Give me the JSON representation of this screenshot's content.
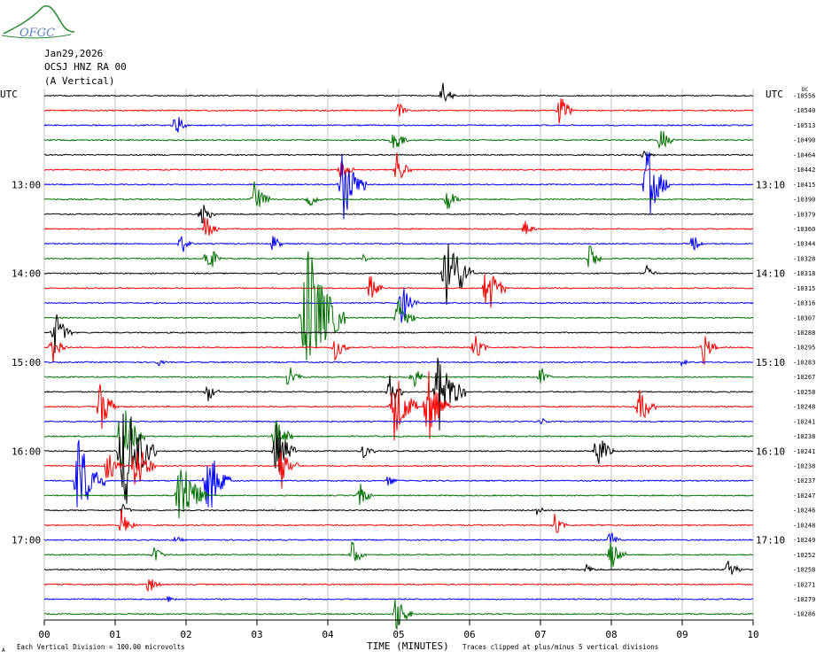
{
  "header": {
    "logo_text": "OFGC",
    "date": "Jan29,2026",
    "station": "OCSJ HNZ RA 00",
    "component": "(A Vertical)",
    "utc_left": "UTC",
    "utc_right": "UTC",
    "dc_label": "DC"
  },
  "footer": {
    "xlabel": "TIME (MINUTES)",
    "scale_note": "Each Vertical Division =  100.00 microvolts",
    "clip_note": "Traces clipped at plus/minus 5 vertical divisions",
    "corner_mark": "A"
  },
  "chart_data": {
    "type": "seismogram",
    "x_ticks": [
      "00",
      "01",
      "02",
      "03",
      "04",
      "05",
      "06",
      "07",
      "08",
      "09",
      "10"
    ],
    "xlim": [
      0,
      10
    ],
    "trace_colors": [
      "#000000",
      "#ff0000",
      "#0000ff",
      "#007000"
    ],
    "left_time_labels": [
      {
        "row": 6,
        "label": "13:00"
      },
      {
        "row": 12,
        "label": "14:00"
      },
      {
        "row": 18,
        "label": "15:00"
      },
      {
        "row": 24,
        "label": "16:00"
      },
      {
        "row": 30,
        "label": "17:00"
      }
    ],
    "right_time_labels": [
      {
        "row": 6,
        "label": "13:10"
      },
      {
        "row": 12,
        "label": "14:10"
      },
      {
        "row": 18,
        "label": "15:10"
      },
      {
        "row": 24,
        "label": "16:10"
      },
      {
        "row": 30,
        "label": "17:10"
      }
    ],
    "dc_offsets": [
      "-10556",
      "-10540",
      "-10513",
      "-10490",
      "-10464",
      "-10442",
      "-10415",
      "-10390",
      "-10379",
      "-10360",
      "-10344",
      "-10328",
      "-10318",
      "-10315",
      "-10316",
      "-10307",
      "-10288",
      "-10295",
      "-10283",
      "-10267",
      "-10258",
      "-10248",
      "-10241",
      "-10238",
      "-10241",
      "-10238",
      "-10237",
      "-10247",
      "-10246",
      "-10248",
      "-10249",
      "-10252",
      "-10258",
      "-10271",
      "-10279",
      "-10286"
    ],
    "events": [
      {
        "row": 0,
        "t": 5.62,
        "amp": 0.9
      },
      {
        "row": 1,
        "t": 5.0,
        "amp": 0.6
      },
      {
        "row": 1,
        "t": 7.28,
        "amp": 1.2
      },
      {
        "row": 2,
        "t": 1.85,
        "amp": 1.0
      },
      {
        "row": 3,
        "t": 4.93,
        "amp": 1.2
      },
      {
        "row": 3,
        "t": 8.7,
        "amp": 1.0
      },
      {
        "row": 4,
        "t": 8.45,
        "amp": 0.5
      },
      {
        "row": 5,
        "t": 4.18,
        "amp": 1.0
      },
      {
        "row": 5,
        "t": 4.98,
        "amp": 1.2
      },
      {
        "row": 6,
        "t": 4.22,
        "amp": 2.6
      },
      {
        "row": 6,
        "t": 8.52,
        "amp": 2.5
      },
      {
        "row": 7,
        "t": 2.97,
        "amp": 1.3
      },
      {
        "row": 7,
        "t": 3.72,
        "amp": 0.9
      },
      {
        "row": 7,
        "t": 5.68,
        "amp": 1.0
      },
      {
        "row": 8,
        "t": 2.22,
        "amp": 1.0
      },
      {
        "row": 9,
        "t": 2.28,
        "amp": 1.0
      },
      {
        "row": 9,
        "t": 6.78,
        "amp": 0.7
      },
      {
        "row": 10,
        "t": 1.93,
        "amp": 0.8
      },
      {
        "row": 10,
        "t": 3.23,
        "amp": 0.6
      },
      {
        "row": 10,
        "t": 9.15,
        "amp": 0.7
      },
      {
        "row": 11,
        "t": 2.3,
        "amp": 1.3
      },
      {
        "row": 11,
        "t": 4.5,
        "amp": 0.3
      },
      {
        "row": 11,
        "t": 7.7,
        "amp": 1.0
      },
      {
        "row": 12,
        "t": 5.7,
        "amp": 3.2
      },
      {
        "row": 12,
        "t": 8.5,
        "amp": 0.6
      },
      {
        "row": 13,
        "t": 4.6,
        "amp": 1.0
      },
      {
        "row": 13,
        "t": 6.25,
        "amp": 2.0
      },
      {
        "row": 14,
        "t": 5.05,
        "amp": 1.5
      },
      {
        "row": 15,
        "t": 3.73,
        "amp": 5.0
      },
      {
        "row": 15,
        "t": 5.0,
        "amp": 1.5
      },
      {
        "row": 16,
        "t": 0.15,
        "amp": 1.6
      },
      {
        "row": 17,
        "t": 0.12,
        "amp": 1.3
      },
      {
        "row": 17,
        "t": 4.1,
        "amp": 1.0
      },
      {
        "row": 17,
        "t": 6.07,
        "amp": 1.0
      },
      {
        "row": 17,
        "t": 9.3,
        "amp": 1.3
      },
      {
        "row": 18,
        "t": 1.6,
        "amp": 0.3
      },
      {
        "row": 18,
        "t": 9.0,
        "amp": 0.3
      },
      {
        "row": 19,
        "t": 3.45,
        "amp": 1.0
      },
      {
        "row": 19,
        "t": 5.2,
        "amp": 1.0
      },
      {
        "row": 19,
        "t": 7.0,
        "amp": 0.8
      },
      {
        "row": 20,
        "t": 2.3,
        "amp": 0.8
      },
      {
        "row": 20,
        "t": 4.88,
        "amp": 1.2
      },
      {
        "row": 20,
        "t": 5.58,
        "amp": 3.0
      },
      {
        "row": 21,
        "t": 0.8,
        "amp": 1.8
      },
      {
        "row": 21,
        "t": 4.95,
        "amp": 2.6
      },
      {
        "row": 21,
        "t": 5.42,
        "amp": 2.5
      },
      {
        "row": 21,
        "t": 8.4,
        "amp": 1.5
      },
      {
        "row": 22,
        "t": 7.0,
        "amp": 0.3
      },
      {
        "row": 23,
        "t": 1.1,
        "amp": 2.5
      },
      {
        "row": 23,
        "t": 3.27,
        "amp": 1.5
      },
      {
        "row": 24,
        "t": 1.14,
        "amp": 4.0
      },
      {
        "row": 24,
        "t": 3.28,
        "amp": 2.0
      },
      {
        "row": 24,
        "t": 4.5,
        "amp": 0.7
      },
      {
        "row": 24,
        "t": 7.8,
        "amp": 1.5
      },
      {
        "row": 25,
        "t": 0.9,
        "amp": 1.3
      },
      {
        "row": 25,
        "t": 1.3,
        "amp": 2.0
      },
      {
        "row": 25,
        "t": 3.35,
        "amp": 1.6
      },
      {
        "row": 26,
        "t": 0.5,
        "amp": 3.0
      },
      {
        "row": 26,
        "t": 2.32,
        "amp": 2.4
      },
      {
        "row": 26,
        "t": 4.85,
        "amp": 0.5
      },
      {
        "row": 27,
        "t": 1.93,
        "amp": 3.0
      },
      {
        "row": 27,
        "t": 4.45,
        "amp": 1.0
      },
      {
        "row": 28,
        "t": 1.1,
        "amp": 0.5
      },
      {
        "row": 28,
        "t": 6.95,
        "amp": 0.4
      },
      {
        "row": 29,
        "t": 1.1,
        "amp": 1.2
      },
      {
        "row": 29,
        "t": 7.2,
        "amp": 0.8
      },
      {
        "row": 30,
        "t": 1.85,
        "amp": 0.3
      },
      {
        "row": 30,
        "t": 7.98,
        "amp": 0.7
      },
      {
        "row": 31,
        "t": 1.55,
        "amp": 0.7
      },
      {
        "row": 31,
        "t": 4.35,
        "amp": 1.0
      },
      {
        "row": 31,
        "t": 8.0,
        "amp": 1.2
      },
      {
        "row": 32,
        "t": 7.65,
        "amp": 0.5
      },
      {
        "row": 32,
        "t": 9.65,
        "amp": 1.0
      },
      {
        "row": 33,
        "t": 1.48,
        "amp": 0.8
      },
      {
        "row": 34,
        "t": 1.75,
        "amp": 0.3
      },
      {
        "row": 35,
        "t": 4.97,
        "amp": 1.4
      }
    ]
  }
}
